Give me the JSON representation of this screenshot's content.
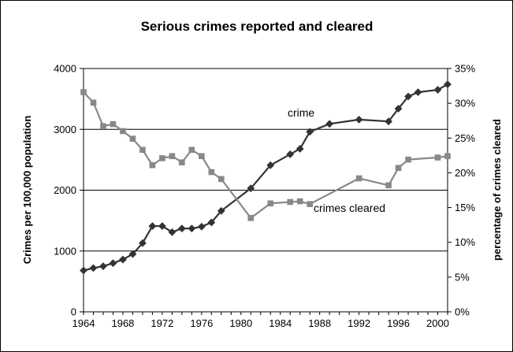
{
  "chart_data": {
    "type": "line",
    "title": "Serious crimes reported and cleared",
    "ylabel": "Crimes per 100,000 population",
    "y2label": "percentage of crimes cleared",
    "xlabel": "",
    "xlim": [
      1964,
      2001
    ],
    "ylim": [
      0,
      4000
    ],
    "y2lim": [
      0,
      35
    ],
    "x_ticks": [
      1964,
      1968,
      1972,
      1976,
      1980,
      1984,
      1988,
      1992,
      1996,
      2000
    ],
    "x_tick_labels": [
      "1964",
      "1968",
      "1972",
      "1976",
      "1980",
      "1984",
      "1988",
      "1992",
      "1996",
      "2000"
    ],
    "y_ticks": [
      0,
      1000,
      2000,
      3000,
      4000
    ],
    "y_tick_labels": [
      "0",
      "1000",
      "2000",
      "3000",
      "4000"
    ],
    "y2_ticks": [
      0,
      5,
      10,
      15,
      20,
      25,
      30,
      35
    ],
    "y2_tick_labels": [
      "0%",
      "5%",
      "10%",
      "15%",
      "20%",
      "25%",
      "30%",
      "35%"
    ],
    "grid": "horizontal major lines",
    "legend": "none",
    "annotations": [
      {
        "text": "crime",
        "series": "crime"
      },
      {
        "text": "crimes cleared",
        "series": "crimes cleared"
      }
    ],
    "series": [
      {
        "name": "crime",
        "axis": "left",
        "marker": "diamond",
        "color": "#333333",
        "x": [
          1964,
          1965,
          1966,
          1967,
          1968,
          1969,
          1970,
          1971,
          1972,
          1973,
          1974,
          1975,
          1976,
          1977,
          1978,
          1981,
          1983,
          1985,
          1986,
          1987,
          1989,
          1992,
          1995,
          1996,
          1997,
          1998,
          2000,
          2001
        ],
        "values": [
          680,
          720,
          750,
          800,
          860,
          950,
          1130,
          1410,
          1410,
          1310,
          1370,
          1370,
          1400,
          1470,
          1660,
          2030,
          2410,
          2590,
          2680,
          2960,
          3090,
          3160,
          3130,
          3340,
          3540,
          3610,
          3650,
          3740
        ]
      },
      {
        "name": "crimes cleared",
        "axis": "right",
        "marker": "square",
        "color": "#888888",
        "x": [
          1964,
          1965,
          1966,
          1967,
          1968,
          1969,
          1970,
          1971,
          1972,
          1973,
          1974,
          1975,
          1976,
          1977,
          1978,
          1981,
          1983,
          1985,
          1986,
          1987,
          1992,
          1995,
          1996,
          1997,
          2000,
          2001
        ],
        "values": [
          31.6,
          30.1,
          26.7,
          27.0,
          26.0,
          24.9,
          23.3,
          21.1,
          22.1,
          22.4,
          21.5,
          23.3,
          22.4,
          20.1,
          19.1,
          13.5,
          15.6,
          15.8,
          15.9,
          15.5,
          19.2,
          18.2,
          20.7,
          21.9,
          22.2,
          22.4
        ]
      }
    ]
  }
}
